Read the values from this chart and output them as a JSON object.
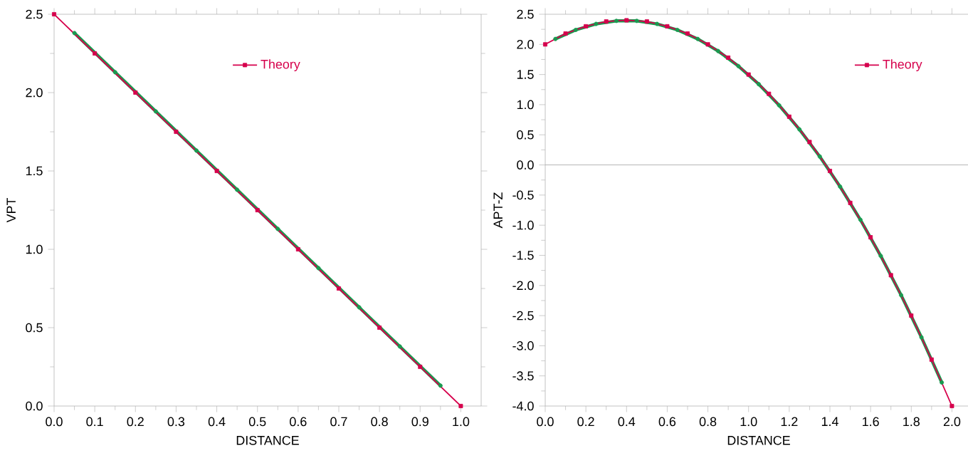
{
  "chart_data": [
    {
      "type": "line",
      "xlabel": "DISTANCE",
      "ylabel": "VPT",
      "legend": "top",
      "xlim": [
        0,
        1.05
      ],
      "ylim": [
        0,
        2.5
      ],
      "xticks": [
        {
          "value": 0,
          "label": "0.0"
        },
        0.1,
        0.2,
        0.3,
        0.4,
        0.5,
        0.6,
        0.7,
        0.8,
        0.9,
        {
          "value": 1,
          "label": "1.0"
        }
      ],
      "yticks": [
        {
          "value": 0,
          "label": "0.0"
        },
        0.5,
        {
          "value": 1,
          "label": "1.0"
        },
        1.5,
        {
          "value": 2,
          "label": "2.0"
        },
        2.5
      ],
      "series": [
        {
          "color": "#1a9a50",
          "marker": "circle",
          "x": [
            0.05,
            0.15,
            0.25,
            0.35,
            0.45,
            0.55,
            0.65,
            0.75,
            0.85,
            0.95
          ],
          "values": [
            2.38,
            2.13,
            1.88,
            1.63,
            1.38,
            1.13,
            0.88,
            0.63,
            0.38,
            0.13
          ]
        },
        {
          "name": "Theory",
          "color": "#d6004c",
          "marker": "square",
          "x": [
            0,
            0.1,
            0.2,
            0.3,
            0.4,
            0.5,
            0.6,
            0.7,
            0.8,
            0.9,
            1.0
          ],
          "values": [
            2.5,
            2.25,
            2.0,
            1.75,
            1.5,
            1.25,
            1.0,
            0.75,
            0.5,
            0.25,
            0.0
          ]
        }
      ]
    },
    {
      "type": "line",
      "xlabel": "DISTANCE",
      "ylabel": "APT-Z",
      "legend": "top right",
      "xlim": [
        0,
        2.1
      ],
      "ylim": [
        -4,
        2.5
      ],
      "xticks": [
        {
          "value": 0,
          "label": "0.0"
        },
        0.2,
        0.4,
        0.6,
        0.8,
        {
          "value": 1,
          "label": "1.0"
        },
        1.2,
        1.4,
        1.6,
        1.8,
        {
          "value": 2,
          "label": "2.0"
        }
      ],
      "yticks": [
        {
          "value": -4,
          "label": "-4.0"
        },
        -3.5,
        {
          "value": -3,
          "label": "-3.0"
        },
        -2.5,
        {
          "value": -2,
          "label": "-2.0"
        },
        -1.5,
        {
          "value": -1,
          "label": "-1.0"
        },
        -0.5,
        {
          "value": 0,
          "label": "0.0"
        },
        0.5,
        {
          "value": 1,
          "label": "1.0"
        },
        1.5,
        {
          "value": 2,
          "label": "2.0"
        },
        2.5
      ],
      "ref_lines": [
        {
          "axis": "y",
          "value": 0,
          "color": "#a0a0a0"
        }
      ],
      "series": [
        {
          "color": "#1a9a50",
          "marker": "circle",
          "x": [
            0.05,
            0.15,
            0.25,
            0.35,
            0.45,
            0.55,
            0.65,
            0.75,
            0.85,
            0.95,
            1.05,
            1.15,
            1.25,
            1.35,
            1.45,
            1.55,
            1.65,
            1.75,
            1.85,
            1.95
          ],
          "values": [
            2.09,
            2.24,
            2.34,
            2.39,
            2.39,
            2.34,
            2.24,
            2.09,
            1.89,
            1.64,
            1.34,
            0.99,
            0.59,
            0.14,
            -0.36,
            -0.91,
            -1.51,
            -2.16,
            -2.86,
            -3.61
          ]
        },
        {
          "name": "Theory",
          "color": "#d6004c",
          "marker": "square",
          "x": [
            0,
            0.1,
            0.2,
            0.3,
            0.4,
            0.5,
            0.6,
            0.7,
            0.8,
            0.9,
            1.0,
            1.1,
            1.2,
            1.3,
            1.4,
            1.5,
            1.6,
            1.7,
            1.8,
            1.9,
            2.0
          ],
          "values": [
            2.0,
            2.18,
            2.3,
            2.38,
            2.4,
            2.38,
            2.3,
            2.18,
            2.0,
            1.78,
            1.5,
            1.18,
            0.8,
            0.38,
            -0.1,
            -0.63,
            -1.2,
            -1.83,
            -2.5,
            -3.23,
            -4.0
          ]
        }
      ]
    }
  ]
}
